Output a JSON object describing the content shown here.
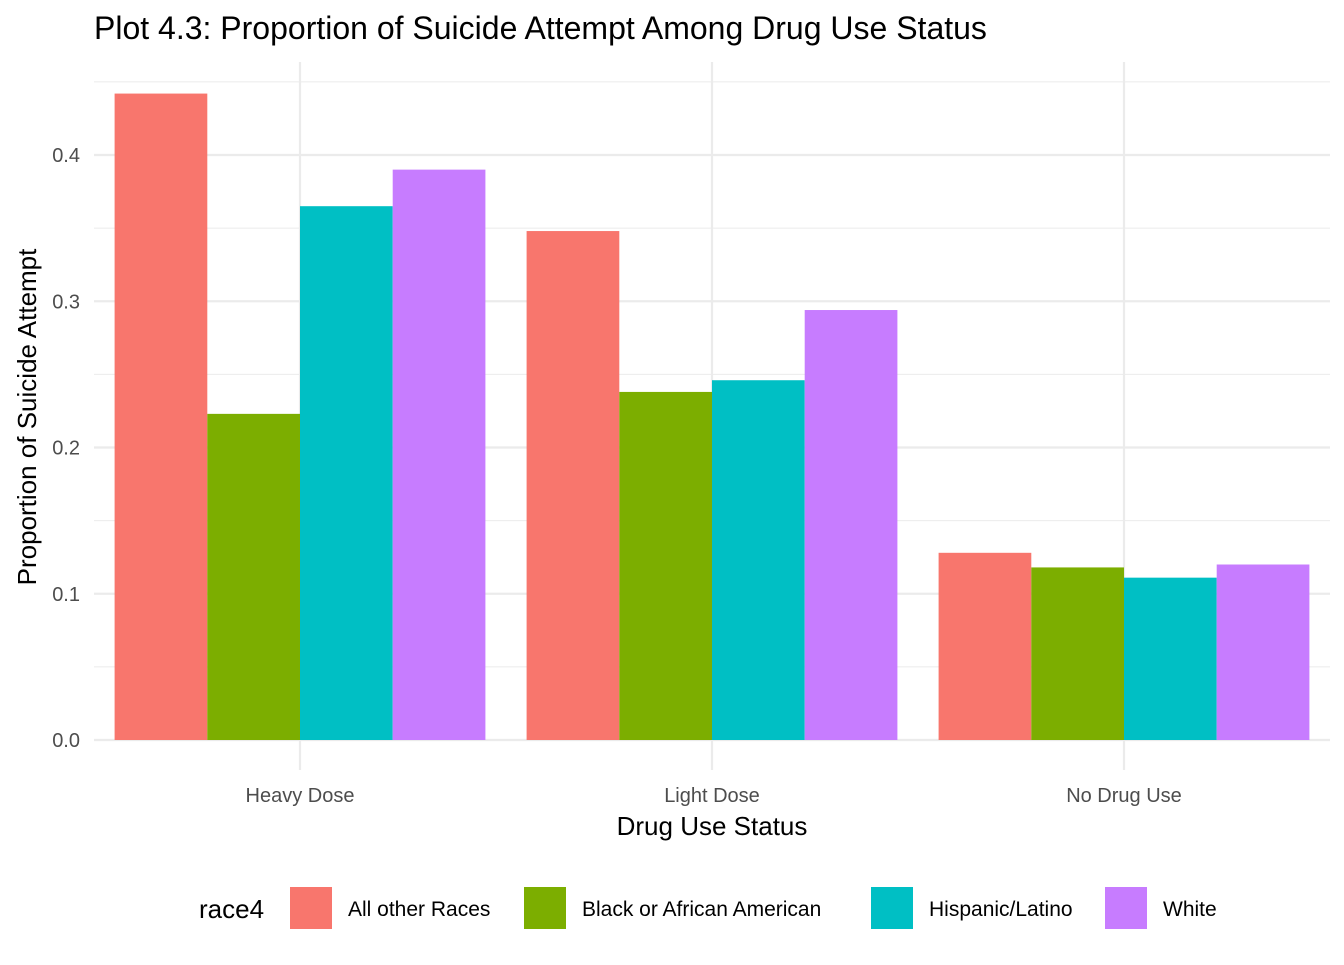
{
  "chart_data": {
    "type": "bar",
    "title": "Plot 4.3: Proportion of Suicide Attempt Among Drug Use Status",
    "xlabel": "Drug Use Status",
    "ylabel": "Proportion of Suicide Attempt",
    "categories": [
      "Heavy Dose",
      "Light Dose",
      "No Drug Use"
    ],
    "ylim": [
      0,
      0.46
    ],
    "yticks": [
      0.0,
      0.1,
      0.2,
      0.3,
      0.4
    ],
    "ytick_labels": [
      "0.0",
      "0.1",
      "0.2",
      "0.3",
      "0.4"
    ],
    "grid": true,
    "legend": {
      "title": "race4",
      "placement": "bottom"
    },
    "series": [
      {
        "name": "All other Races",
        "color": "#F8766D",
        "values": [
          0.442,
          0.348,
          0.128
        ]
      },
      {
        "name": "Black or African American",
        "color": "#7CAE00",
        "values": [
          0.223,
          0.238,
          0.118
        ]
      },
      {
        "name": "Hispanic/Latino",
        "color": "#00BFC4",
        "values": [
          0.365,
          0.246,
          0.111
        ]
      },
      {
        "name": "White",
        "color": "#C77CFF",
        "values": [
          0.39,
          0.294,
          0.12
        ]
      }
    ]
  }
}
